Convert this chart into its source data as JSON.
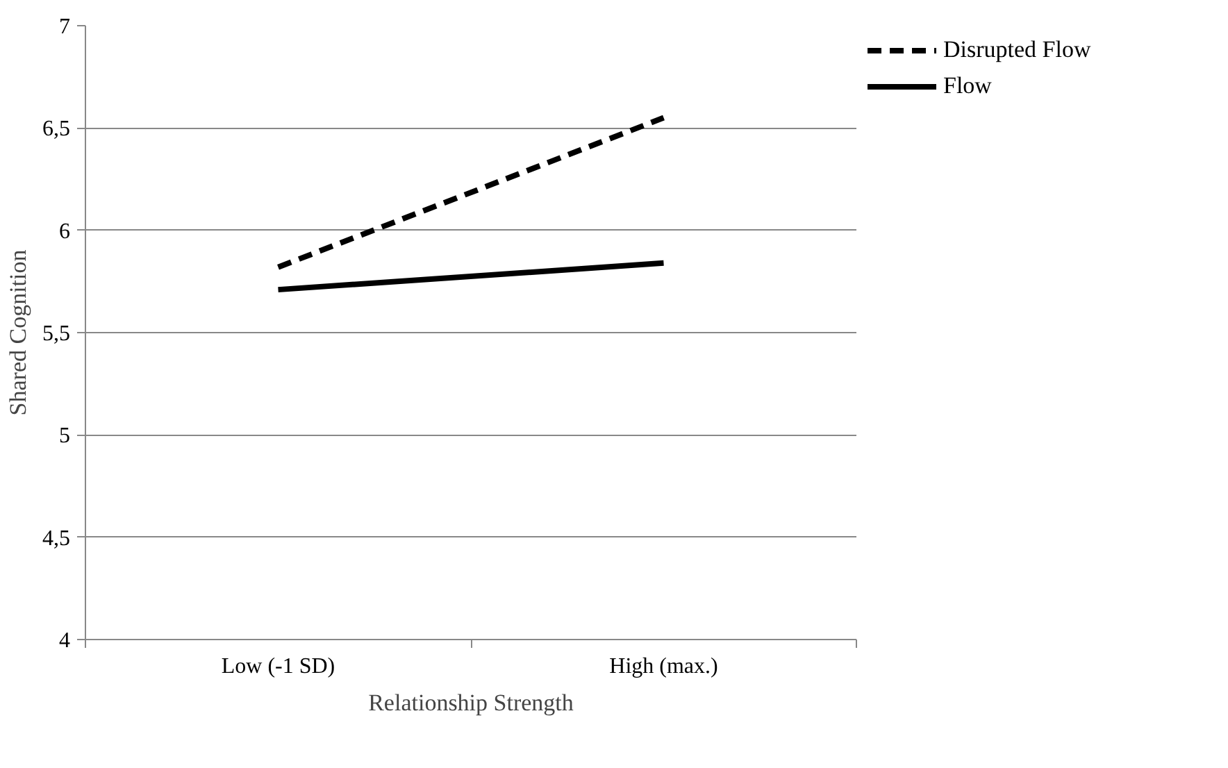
{
  "chart_data": {
    "type": "line",
    "xlabel": "Relationship Strength",
    "ylabel": "Shared Cognition",
    "categories": [
      "Low (-1 SD)",
      "High (max.)"
    ],
    "series": [
      {
        "name": "Disrupted Flow",
        "color": "#000000",
        "values": [
          5.82,
          6.55
        ],
        "line_style": "dashed"
      },
      {
        "name": "Flow",
        "color": "#000000",
        "values": [
          5.71,
          5.84
        ],
        "line_style": "solid"
      }
    ],
    "ylim": [
      4,
      7
    ],
    "yticks": [
      4,
      {
        "value": 4.5,
        "label": "4,5"
      },
      5,
      {
        "value": 5.5,
        "label": "5,5"
      },
      6,
      {
        "value": 6.5,
        "label": "6,5"
      },
      7
    ],
    "grid": "y",
    "legend": "right",
    "marker": "none"
  }
}
